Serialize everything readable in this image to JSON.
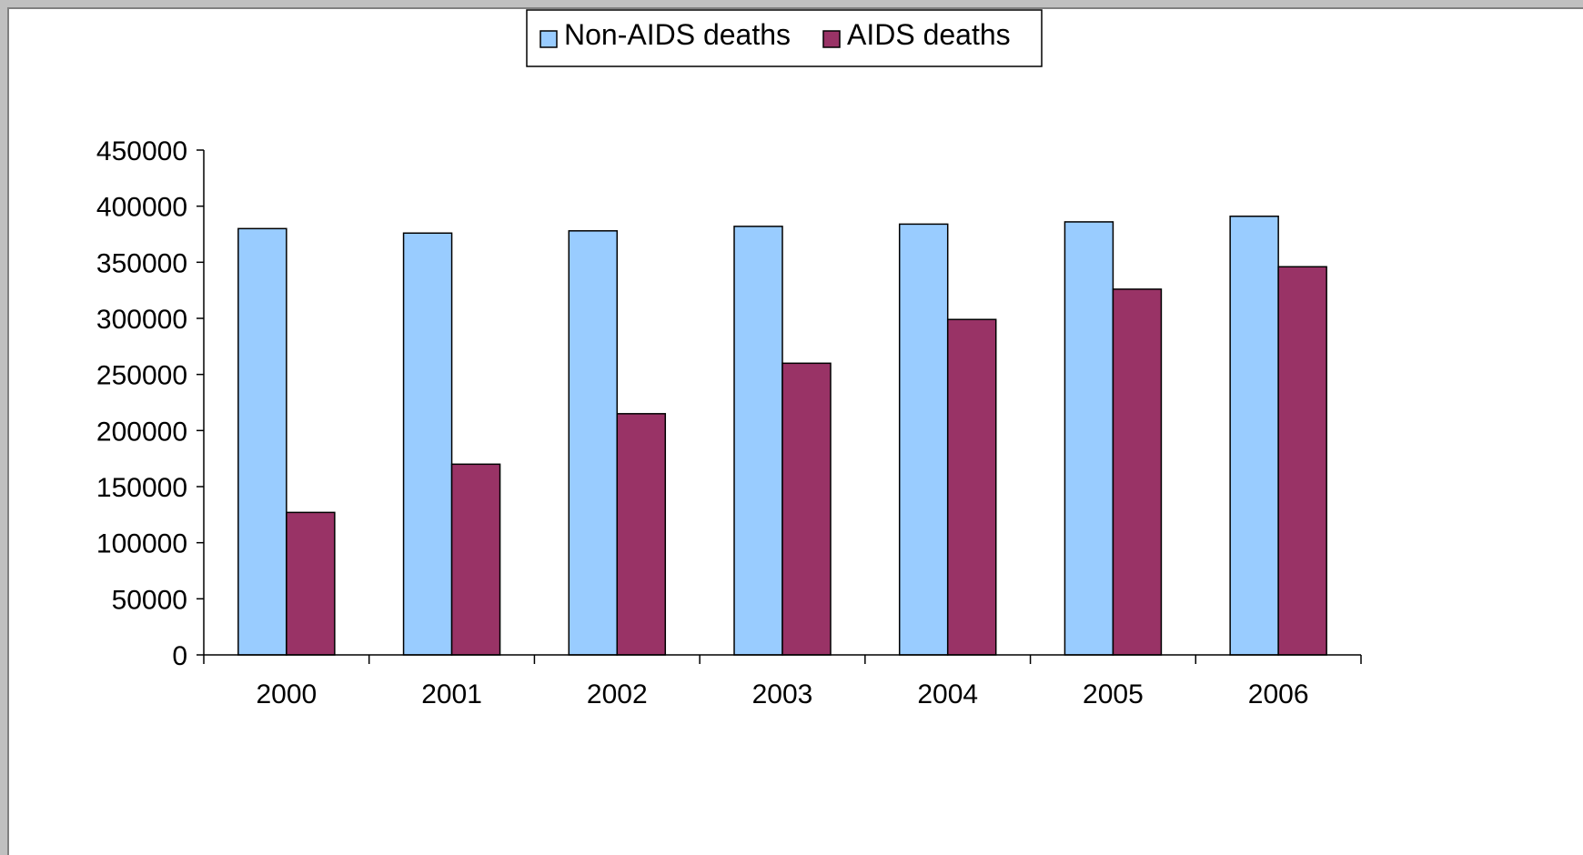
{
  "chart_data": {
    "type": "bar",
    "title": "",
    "xlabel": "",
    "ylabel": "",
    "categories": [
      "2000",
      "2001",
      "2002",
      "2003",
      "2004",
      "2005",
      "2006"
    ],
    "series": [
      {
        "name": "Non-AIDS deaths",
        "color": "#99ccff",
        "values": [
          380000,
          376000,
          378000,
          382000,
          384000,
          386000,
          391000
        ]
      },
      {
        "name": "AIDS deaths",
        "color": "#993366",
        "values": [
          127000,
          170000,
          215000,
          260000,
          299000,
          326000,
          346000
        ]
      }
    ],
    "ylim": [
      0,
      450000
    ],
    "yticks": [
      "0",
      "50000",
      "100000",
      "150000",
      "200000",
      "250000",
      "300000",
      "350000",
      "400000",
      "450000"
    ],
    "grid": false,
    "legend_position": "top-center"
  }
}
